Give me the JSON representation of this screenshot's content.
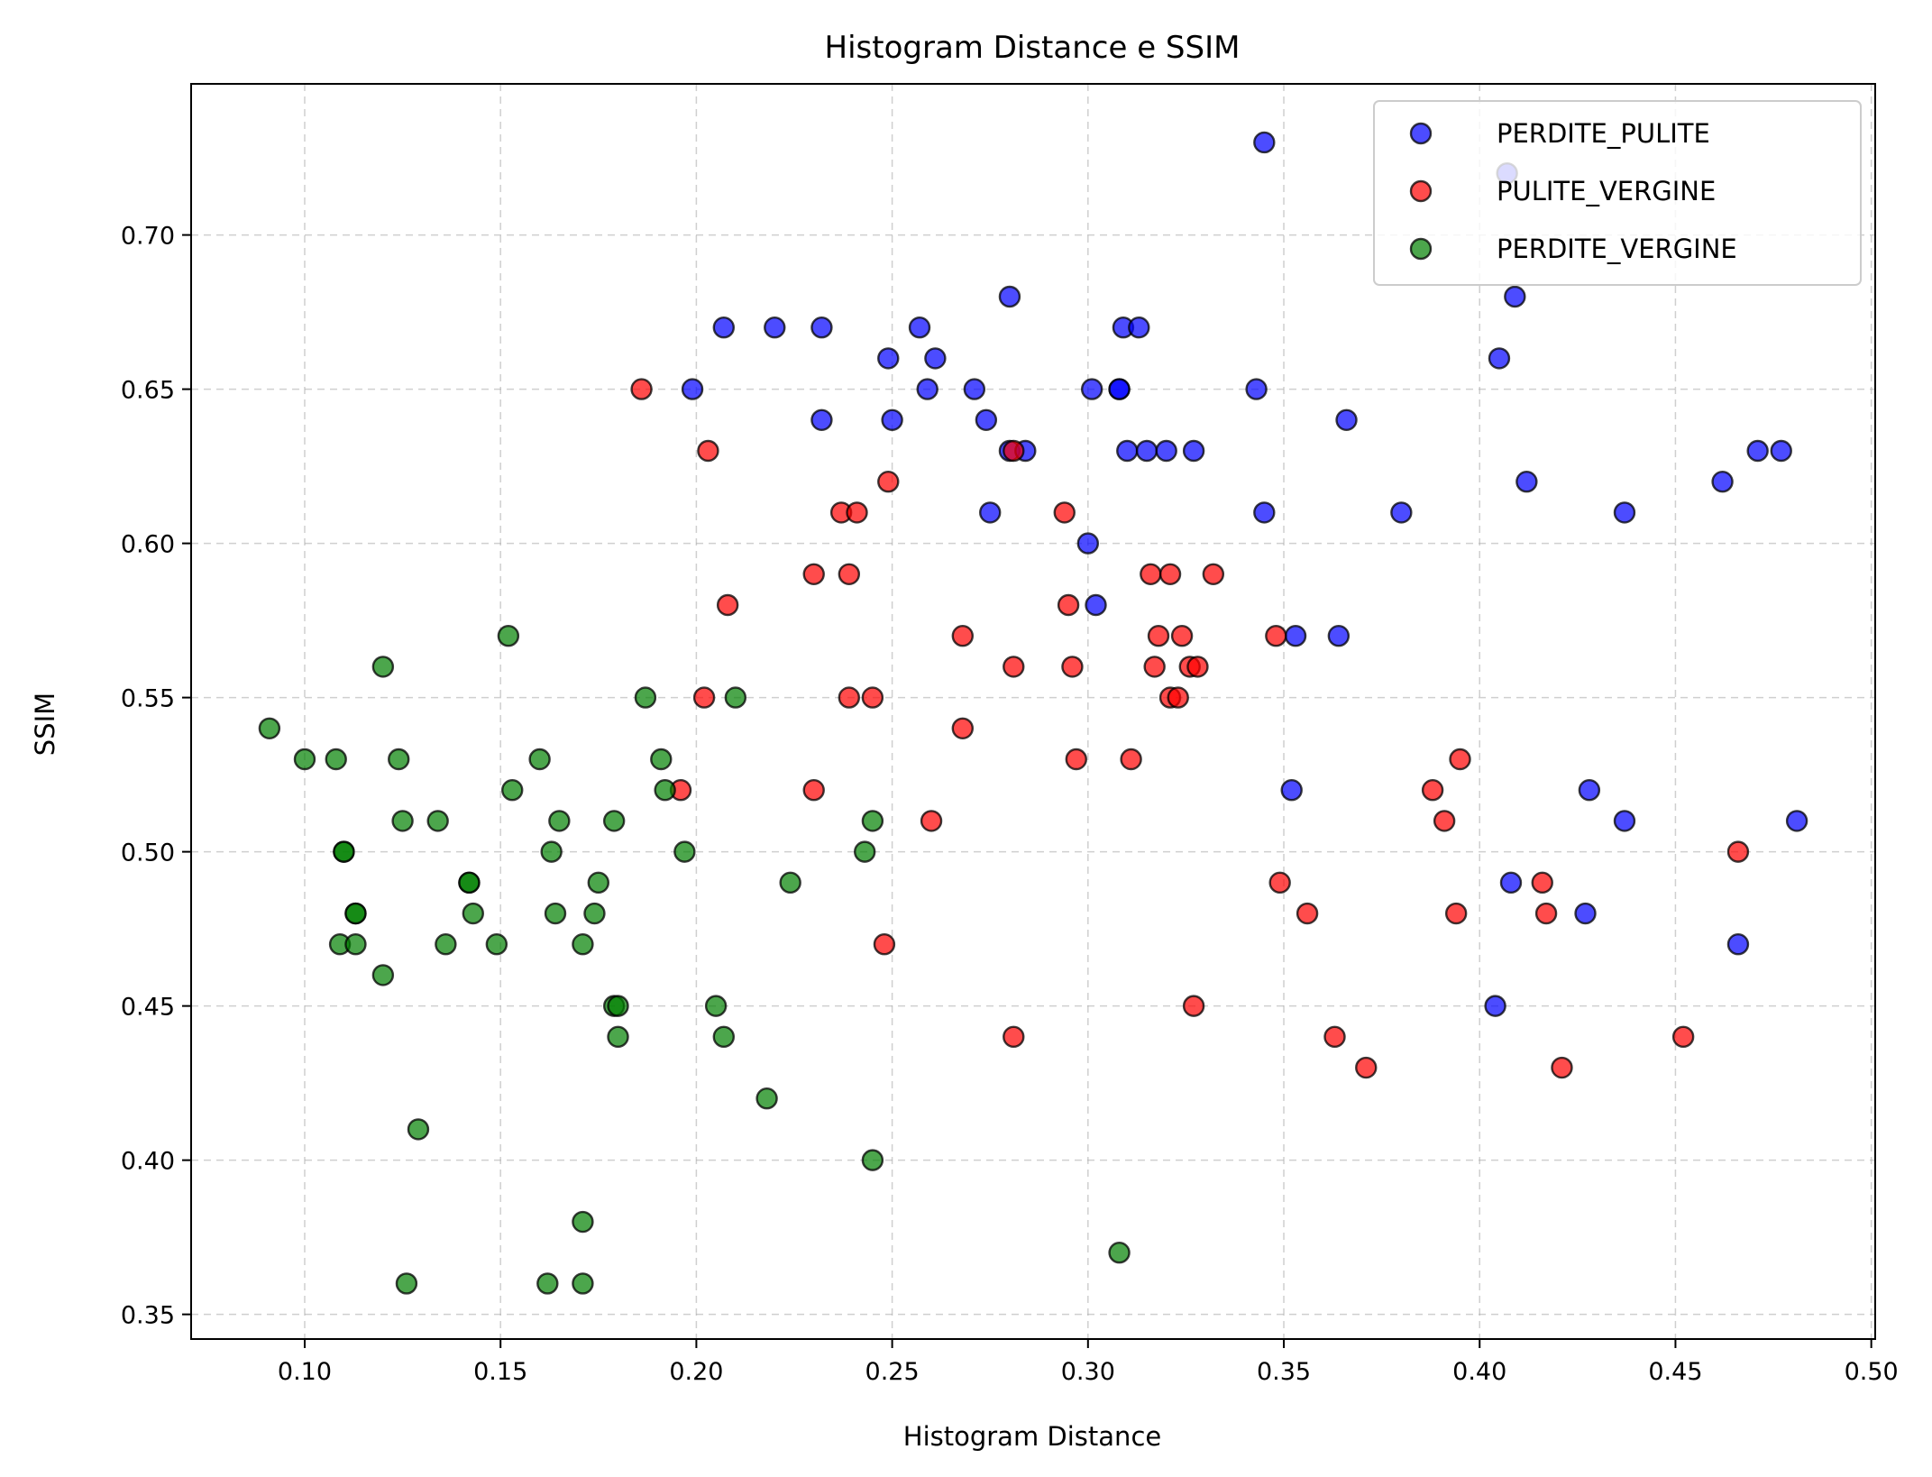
{
  "chart_data": {
    "type": "scatter",
    "title": "Histogram Distance e SSIM",
    "xlabel": "Histogram Distance",
    "ylabel": "SSIM",
    "xlim": [
      0.071,
      0.501
    ],
    "ylim": [
      0.342,
      0.749
    ],
    "xticks": [
      0.1,
      0.15,
      0.2,
      0.25,
      0.3,
      0.35,
      0.4,
      0.45,
      0.5
    ],
    "yticks": [
      0.35,
      0.4,
      0.45,
      0.5,
      0.55,
      0.6,
      0.65,
      0.7
    ],
    "xtick_labels": [
      "0.10",
      "0.15",
      "0.20",
      "0.25",
      "0.30",
      "0.35",
      "0.40",
      "0.45",
      "0.50"
    ],
    "ytick_labels": [
      "0.35",
      "0.40",
      "0.45",
      "0.50",
      "0.55",
      "0.60",
      "0.65",
      "0.70"
    ],
    "grid": true,
    "legend_position": "top-right",
    "series": [
      {
        "name": "PERDITE_PULITE",
        "color": "#0000ff",
        "points": [
          [
            0.345,
            0.73
          ],
          [
            0.407,
            0.72
          ],
          [
            0.28,
            0.68
          ],
          [
            0.409,
            0.68
          ],
          [
            0.207,
            0.67
          ],
          [
            0.22,
            0.67
          ],
          [
            0.232,
            0.67
          ],
          [
            0.257,
            0.67
          ],
          [
            0.309,
            0.67
          ],
          [
            0.313,
            0.67
          ],
          [
            0.249,
            0.66
          ],
          [
            0.261,
            0.66
          ],
          [
            0.405,
            0.66
          ],
          [
            0.199,
            0.65
          ],
          [
            0.259,
            0.65
          ],
          [
            0.271,
            0.65
          ],
          [
            0.301,
            0.65
          ],
          [
            0.308,
            0.65
          ],
          [
            0.308,
            0.65
          ],
          [
            0.343,
            0.65
          ],
          [
            0.232,
            0.64
          ],
          [
            0.25,
            0.64
          ],
          [
            0.274,
            0.64
          ],
          [
            0.366,
            0.64
          ],
          [
            0.28,
            0.63
          ],
          [
            0.284,
            0.63
          ],
          [
            0.31,
            0.63
          ],
          [
            0.315,
            0.63
          ],
          [
            0.32,
            0.63
          ],
          [
            0.327,
            0.63
          ],
          [
            0.471,
            0.63
          ],
          [
            0.477,
            0.63
          ],
          [
            0.412,
            0.62
          ],
          [
            0.462,
            0.62
          ],
          [
            0.275,
            0.61
          ],
          [
            0.345,
            0.61
          ],
          [
            0.38,
            0.61
          ],
          [
            0.437,
            0.61
          ],
          [
            0.3,
            0.6
          ],
          [
            0.302,
            0.58
          ],
          [
            0.353,
            0.57
          ],
          [
            0.364,
            0.57
          ],
          [
            0.352,
            0.52
          ],
          [
            0.428,
            0.52
          ],
          [
            0.437,
            0.51
          ],
          [
            0.481,
            0.51
          ],
          [
            0.408,
            0.49
          ],
          [
            0.427,
            0.48
          ],
          [
            0.466,
            0.47
          ],
          [
            0.404,
            0.45
          ]
        ]
      },
      {
        "name": "PULITE_VERGINE",
        "color": "#ff0000",
        "points": [
          [
            0.186,
            0.65
          ],
          [
            0.203,
            0.63
          ],
          [
            0.281,
            0.63
          ],
          [
            0.249,
            0.62
          ],
          [
            0.237,
            0.61
          ],
          [
            0.241,
            0.61
          ],
          [
            0.294,
            0.61
          ],
          [
            0.23,
            0.59
          ],
          [
            0.239,
            0.59
          ],
          [
            0.316,
            0.59
          ],
          [
            0.321,
            0.59
          ],
          [
            0.332,
            0.59
          ],
          [
            0.208,
            0.58
          ],
          [
            0.295,
            0.58
          ],
          [
            0.268,
            0.57
          ],
          [
            0.318,
            0.57
          ],
          [
            0.324,
            0.57
          ],
          [
            0.348,
            0.57
          ],
          [
            0.281,
            0.56
          ],
          [
            0.296,
            0.56
          ],
          [
            0.317,
            0.56
          ],
          [
            0.326,
            0.56
          ],
          [
            0.328,
            0.56
          ],
          [
            0.202,
            0.55
          ],
          [
            0.239,
            0.55
          ],
          [
            0.245,
            0.55
          ],
          [
            0.321,
            0.55
          ],
          [
            0.323,
            0.55
          ],
          [
            0.268,
            0.54
          ],
          [
            0.297,
            0.53
          ],
          [
            0.311,
            0.53
          ],
          [
            0.395,
            0.53
          ],
          [
            0.196,
            0.52
          ],
          [
            0.23,
            0.52
          ],
          [
            0.388,
            0.52
          ],
          [
            0.26,
            0.51
          ],
          [
            0.391,
            0.51
          ],
          [
            0.466,
            0.5
          ],
          [
            0.349,
            0.49
          ],
          [
            0.416,
            0.49
          ],
          [
            0.356,
            0.48
          ],
          [
            0.394,
            0.48
          ],
          [
            0.417,
            0.48
          ],
          [
            0.248,
            0.47
          ],
          [
            0.327,
            0.45
          ],
          [
            0.281,
            0.44
          ],
          [
            0.363,
            0.44
          ],
          [
            0.452,
            0.44
          ],
          [
            0.371,
            0.43
          ],
          [
            0.421,
            0.43
          ]
        ]
      },
      {
        "name": "PERDITE_VERGINE",
        "color": "#008000",
        "points": [
          [
            0.152,
            0.57
          ],
          [
            0.12,
            0.56
          ],
          [
            0.187,
            0.55
          ],
          [
            0.21,
            0.55
          ],
          [
            0.091,
            0.54
          ],
          [
            0.1,
            0.53
          ],
          [
            0.108,
            0.53
          ],
          [
            0.124,
            0.53
          ],
          [
            0.16,
            0.53
          ],
          [
            0.191,
            0.53
          ],
          [
            0.153,
            0.52
          ],
          [
            0.192,
            0.52
          ],
          [
            0.125,
            0.51
          ],
          [
            0.134,
            0.51
          ],
          [
            0.165,
            0.51
          ],
          [
            0.179,
            0.51
          ],
          [
            0.245,
            0.51
          ],
          [
            0.11,
            0.5
          ],
          [
            0.11,
            0.5
          ],
          [
            0.163,
            0.5
          ],
          [
            0.197,
            0.5
          ],
          [
            0.243,
            0.5
          ],
          [
            0.142,
            0.49
          ],
          [
            0.142,
            0.49
          ],
          [
            0.175,
            0.49
          ],
          [
            0.224,
            0.49
          ],
          [
            0.113,
            0.48
          ],
          [
            0.113,
            0.48
          ],
          [
            0.143,
            0.48
          ],
          [
            0.164,
            0.48
          ],
          [
            0.174,
            0.48
          ],
          [
            0.109,
            0.47
          ],
          [
            0.113,
            0.47
          ],
          [
            0.136,
            0.47
          ],
          [
            0.149,
            0.47
          ],
          [
            0.171,
            0.47
          ],
          [
            0.12,
            0.46
          ],
          [
            0.179,
            0.45
          ],
          [
            0.18,
            0.45
          ],
          [
            0.205,
            0.45
          ],
          [
            0.18,
            0.44
          ],
          [
            0.207,
            0.44
          ],
          [
            0.218,
            0.42
          ],
          [
            0.129,
            0.41
          ],
          [
            0.245,
            0.4
          ],
          [
            0.171,
            0.38
          ],
          [
            0.308,
            0.37
          ],
          [
            0.126,
            0.36
          ],
          [
            0.162,
            0.36
          ],
          [
            0.171,
            0.36
          ]
        ]
      }
    ]
  }
}
